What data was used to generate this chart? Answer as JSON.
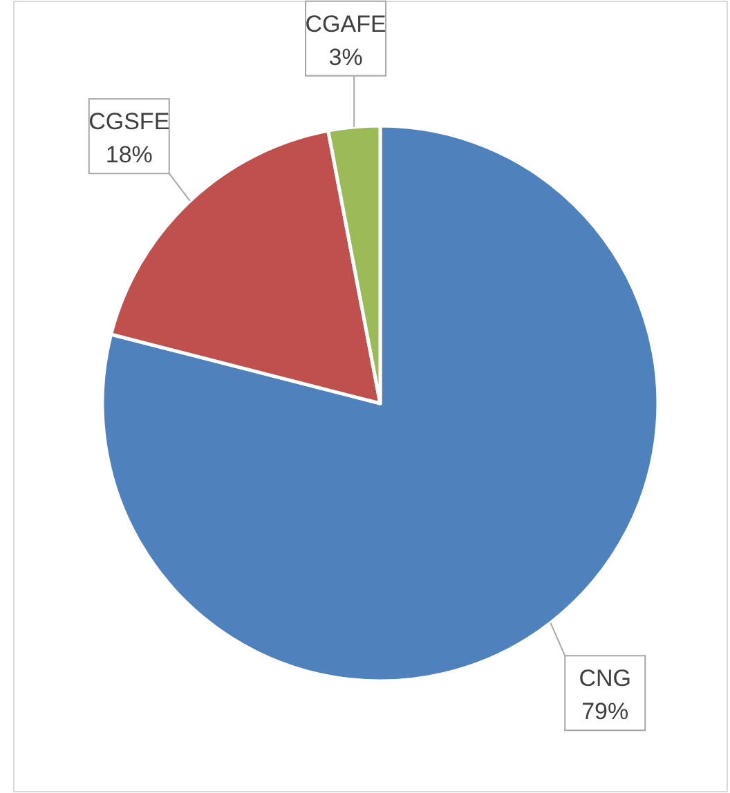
{
  "chart_data": {
    "type": "pie",
    "categories": [
      "CNG",
      "CGSFE",
      "CGAFE"
    ],
    "values": [
      79,
      18,
      3
    ],
    "value_labels": [
      "79%",
      "18%",
      "3%"
    ],
    "colors": [
      "#4f81bd",
      "#c0504d",
      "#9bbb59"
    ]
  }
}
